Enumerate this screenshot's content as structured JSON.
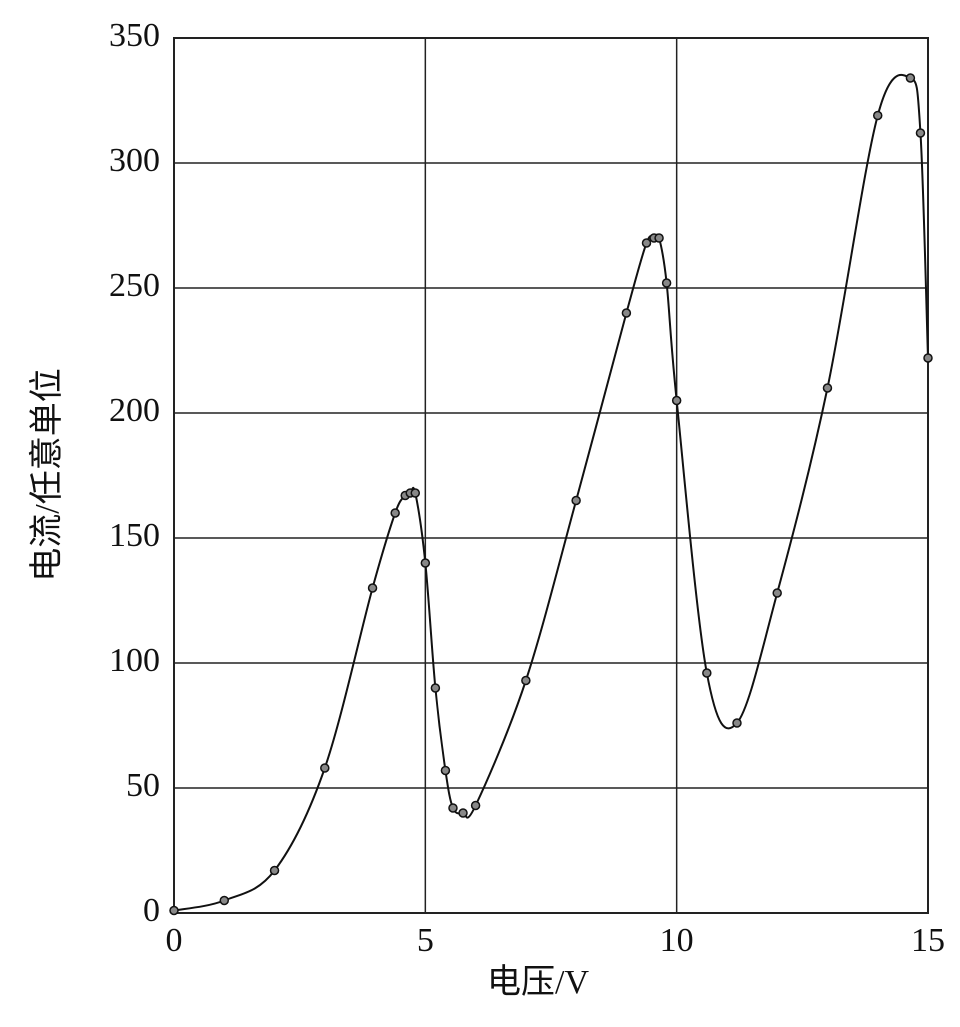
{
  "chart_data": {
    "type": "line",
    "x_label": "电压/V",
    "y_label": "电流/任意单位",
    "x": [
      0,
      1,
      2,
      3,
      3.95,
      4.4,
      4.6,
      4.7,
      4.8,
      5,
      5.2,
      5.4,
      5.55,
      5.75,
      6,
      7,
      8,
      9,
      9.4,
      9.55,
      9.65,
      9.8,
      10,
      10.6,
      11.2,
      12,
      13,
      14,
      14.65,
      14.85,
      15
    ],
    "values": [
      1,
      5,
      17,
      58,
      130,
      160,
      167,
      168,
      168,
      140,
      90,
      57,
      42,
      40,
      43,
      93,
      165,
      240,
      268,
      270,
      270,
      252,
      205,
      96,
      76,
      128,
      210,
      319,
      334,
      312,
      222
    ],
    "color": "#111111",
    "xlim": [
      0,
      15
    ],
    "xticks": [
      0,
      5,
      10,
      15
    ],
    "ylim": [
      0,
      350
    ],
    "yticks": [
      0,
      50,
      100,
      150,
      200,
      250,
      300,
      350
    ],
    "grid": true
  }
}
